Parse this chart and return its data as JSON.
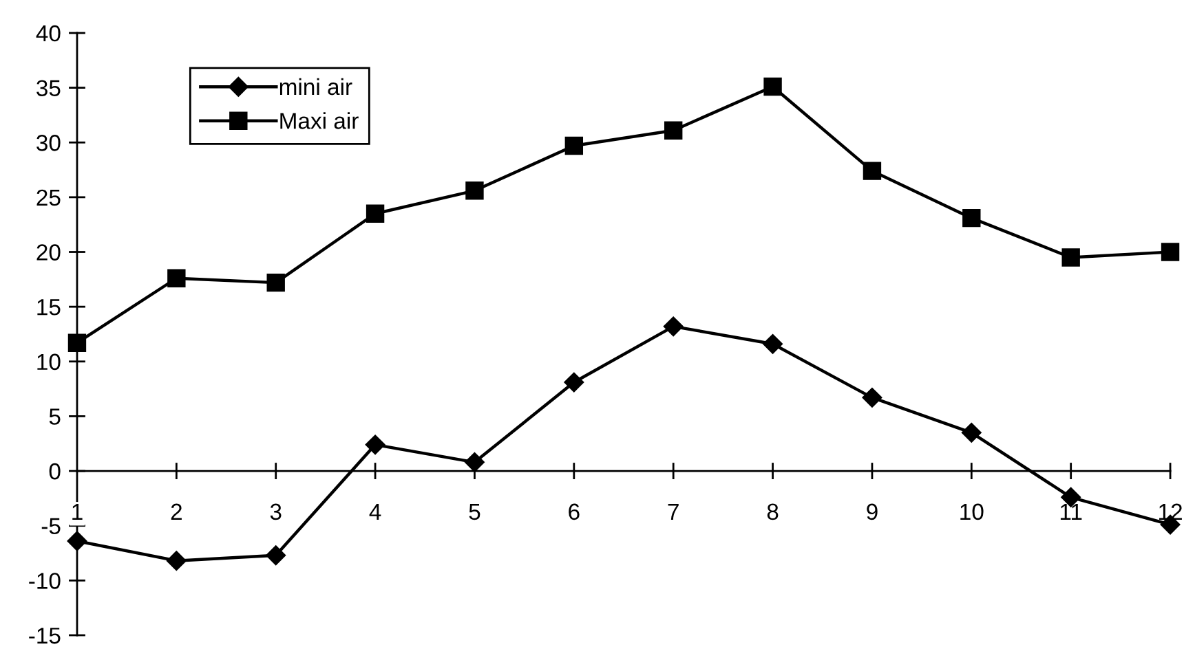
{
  "chart_data": {
    "type": "line",
    "x": [
      1,
      2,
      3,
      4,
      5,
      6,
      7,
      8,
      9,
      10,
      11,
      12
    ],
    "series": [
      {
        "name": "mini air",
        "color": "#000000",
        "marker": "diamond",
        "values": [
          -6.4,
          -8.2,
          -7.7,
          2.4,
          0.8,
          8.1,
          13.2,
          11.6,
          6.7,
          3.5,
          -2.4,
          -4.9
        ]
      },
      {
        "name": "Maxi air",
        "color": "#000000",
        "marker": "square",
        "values": [
          11.7,
          17.6,
          17.2,
          23.5,
          25.6,
          29.7,
          31.1,
          35.1,
          27.4,
          23.1,
          19.5,
          20.0
        ]
      }
    ],
    "xlim": [
      1,
      12
    ],
    "xticks": [
      1,
      2,
      3,
      4,
      5,
      6,
      7,
      8,
      9,
      10,
      11,
      12
    ],
    "ylim": [
      -15,
      40
    ],
    "yticks": [
      -15,
      -10,
      -5,
      0,
      5,
      10,
      15,
      20,
      25,
      30,
      35,
      40
    ],
    "line_style": "solid",
    "grid": false,
    "legend": "top left"
  }
}
